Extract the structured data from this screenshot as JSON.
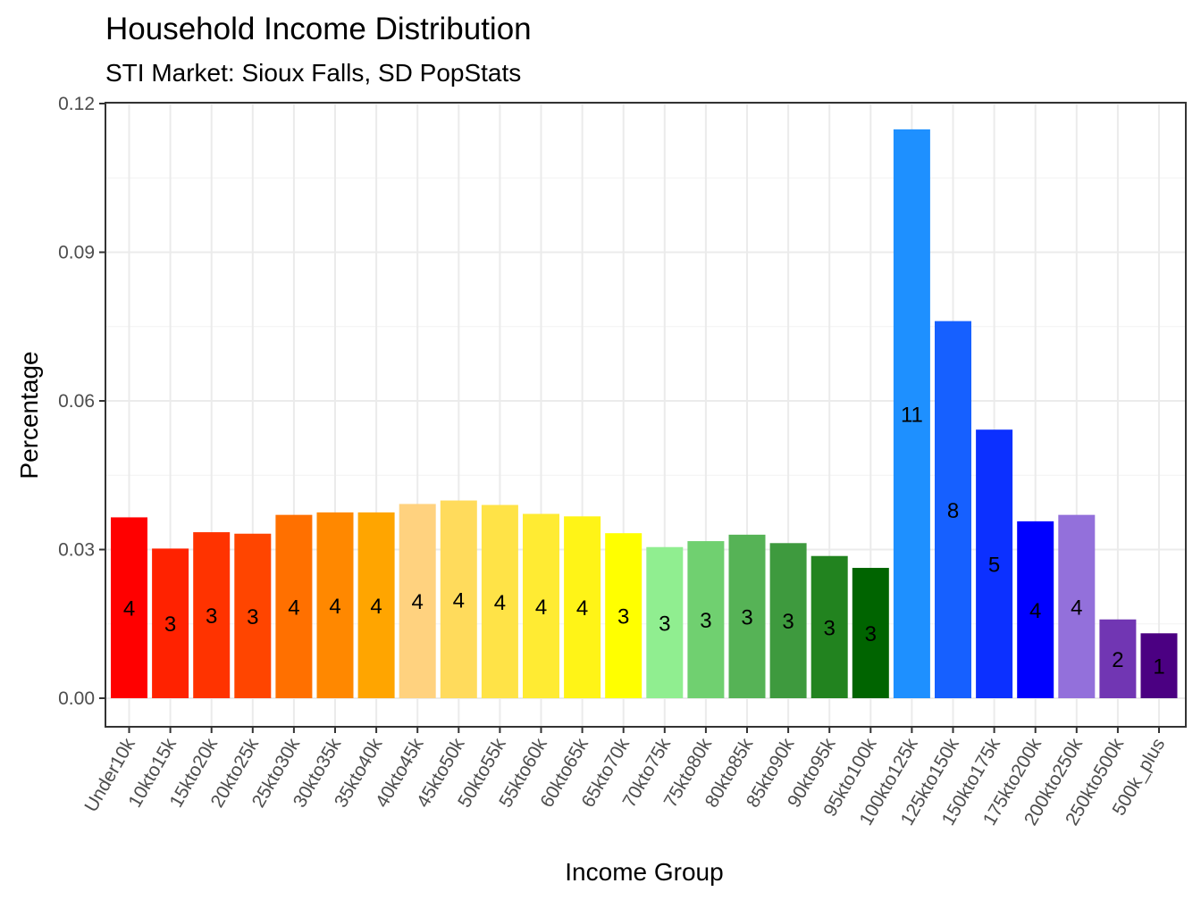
{
  "chart_data": {
    "type": "bar",
    "title": "Household Income Distribution",
    "subtitle": "STI Market: Sioux Falls, SD PopStats",
    "xlabel": "Income Group",
    "ylabel": "Percentage",
    "ylim": [
      0,
      0.12
    ],
    "y_ticks": [
      "0.00",
      "0.03",
      "0.06",
      "0.09",
      "0.12"
    ],
    "grid": true,
    "legend": "none",
    "categories": [
      "Under10k",
      "10kto15k",
      "15kto20k",
      "20kto25k",
      "25kto30k",
      "30kto35k",
      "35kto40k",
      "40kto45k",
      "45kto50k",
      "50kto55k",
      "55kto60k",
      "60kto65k",
      "65kto70k",
      "70kto75k",
      "75kto80k",
      "80kto85k",
      "85kto90k",
      "90kto95k",
      "95kto100k",
      "100kto125k",
      "125kto150k",
      "150kto175k",
      "175kto200k",
      "200kto250k",
      "250kto500k",
      "500k_plus"
    ],
    "values": [
      0.0365,
      0.0302,
      0.0335,
      0.0332,
      0.037,
      0.0375,
      0.0375,
      0.0392,
      0.0399,
      0.039,
      0.0372,
      0.0367,
      0.0333,
      0.0305,
      0.0317,
      0.033,
      0.0313,
      0.0287,
      0.0263,
      0.1148,
      0.0761,
      0.0542,
      0.0357,
      0.037,
      0.0159,
      0.0131
    ],
    "data_labels": [
      "4",
      "3",
      "3",
      "3",
      "4",
      "4",
      "4",
      "4",
      "4",
      "4",
      "4",
      "4",
      "3",
      "3",
      "3",
      "3",
      "3",
      "3",
      "3",
      "11",
      "8",
      "5",
      "4",
      "4",
      "2",
      "1"
    ],
    "colors": [
      "#FF0000",
      "#FF2200",
      "#FF3300",
      "#FF4500",
      "#FF7000",
      "#FF8800",
      "#FFA500",
      "#FFD27F",
      "#FFDB5C",
      "#FFE347",
      "#FFEB33",
      "#FFF417",
      "#FFFF00",
      "#90EE90",
      "#70D070",
      "#56B356",
      "#3E9A3E",
      "#22831F",
      "#006400",
      "#1E90FF",
      "#1660FF",
      "#0C30FF",
      "#0000FF",
      "#9370DB",
      "#7136B3",
      "#4B0082"
    ]
  }
}
